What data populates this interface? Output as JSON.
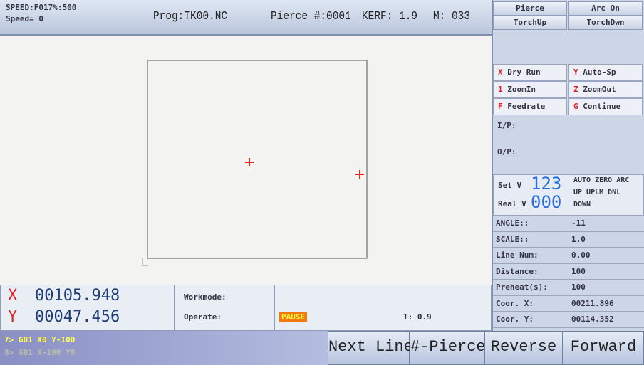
{
  "header": {
    "speed": "SPEED:F017%:500",
    "speed_value": "Speed= 0",
    "program": "Prog:TK00.NC",
    "pierce": "Pierce #:0001",
    "kerf": "KERF: 1.9",
    "m_code": "M: 033"
  },
  "function_keys": [
    [
      "Pierce",
      "Arc On"
    ],
    [
      "TorchUp",
      "TorchDwn"
    ]
  ],
  "hotkeys": [
    [
      {
        "key": "X",
        "label": "Dry Run"
      },
      {
        "key": "Y",
        "label": "Auto-Sp"
      }
    ],
    [
      {
        "key": "1",
        "label": "ZoomIn"
      },
      {
        "key": "Z",
        "label": "ZoomOut"
      }
    ],
    [
      {
        "key": "F",
        "label": "Feedrate"
      },
      {
        "key": "G",
        "label": "Continue"
      }
    ]
  ],
  "io": {
    "input": "I/P:",
    "output": "O/P:"
  },
  "voltage": {
    "set_label": "Set V",
    "set_value": "123",
    "real_label": "Real V",
    "real_value": "000",
    "modes": [
      "AUTO ZERO ARC",
      "UP UPLM DNL",
      "DOWN"
    ]
  },
  "parameters": [
    [
      "ANGLE::",
      "-11"
    ],
    [
      "SCALE::",
      "1.0"
    ],
    [
      "Line Num:",
      "0.00"
    ],
    [
      "Distance:",
      "100"
    ],
    [
      "Preheat(s):",
      "100"
    ],
    [
      "Coor. X:",
      "00211.896"
    ],
    [
      "Coor. Y:",
      "00114.352"
    ]
  ],
  "position": {
    "x_label": "X",
    "x_value": "00105.948",
    "y_label": "Y",
    "y_value": "00047.456"
  },
  "status": {
    "workmode": "Workmode:",
    "operate": "Operate:",
    "state": "PAUSE",
    "time": "T: 0.9"
  },
  "program_lines": [
    "7> G01 X0 Y-100",
    "8> G01 X-100 Y0"
  ],
  "buttons": [
    "Next Line",
    "#-Pierce",
    "Reverse",
    "Forward"
  ]
}
